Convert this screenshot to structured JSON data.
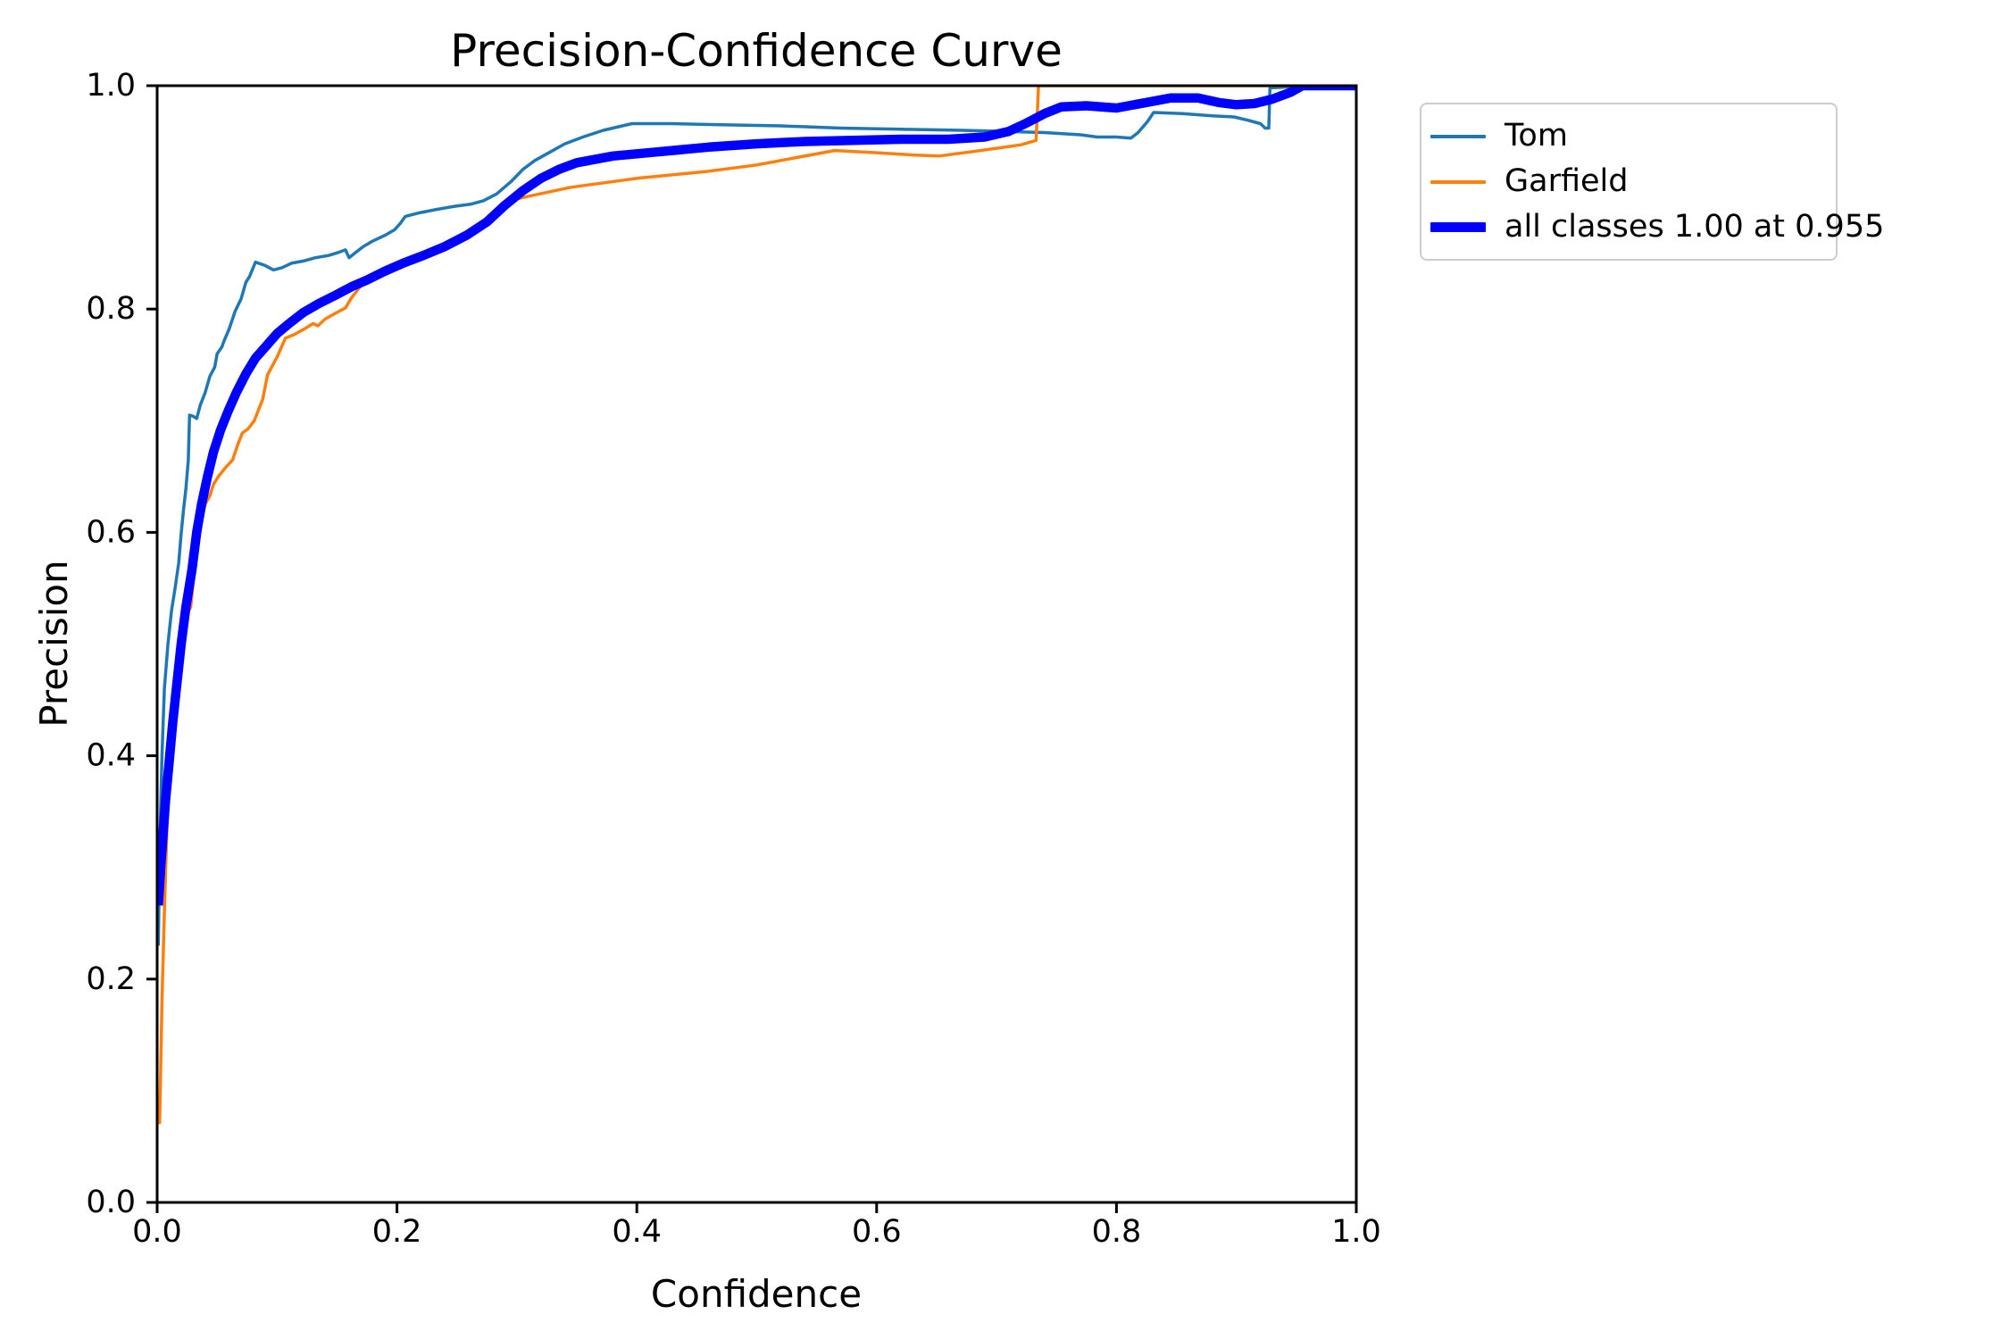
{
  "chart_data": {
    "type": "line",
    "title": "Precision-Confidence Curve",
    "xlabel": "Confidence",
    "ylabel": "Precision",
    "xlim": [
      0.0,
      1.0
    ],
    "ylim": [
      0.0,
      1.0
    ],
    "grid": false,
    "legend_position": "outside-upper-right",
    "x_ticks": [
      0.0,
      0.2,
      0.4,
      0.6,
      0.8,
      1.0
    ],
    "y_ticks": [
      0.0,
      0.2,
      0.4,
      0.6,
      0.8,
      1.0
    ],
    "x_tick_labels": [
      "0.0",
      "0.2",
      "0.4",
      "0.6",
      "0.8",
      "1.0"
    ],
    "y_tick_labels": [
      "0.0",
      "0.2",
      "0.4",
      "0.6",
      "0.8",
      "1.0"
    ],
    "axis_color": "#000000",
    "background_color": "#ffffff",
    "series": [
      {
        "name": "Tom",
        "color": "#1f77b4",
        "line_width": 3.5,
        "points": [
          [
            0.001,
            0.23
          ],
          [
            0.002,
            0.31
          ],
          [
            0.004,
            0.4
          ],
          [
            0.006,
            0.46
          ],
          [
            0.009,
            0.5
          ],
          [
            0.012,
            0.53
          ],
          [
            0.015,
            0.55
          ],
          [
            0.018,
            0.573
          ],
          [
            0.02,
            0.599
          ],
          [
            0.022,
            0.62
          ],
          [
            0.024,
            0.639
          ],
          [
            0.026,
            0.665
          ],
          [
            0.027,
            0.705
          ],
          [
            0.03,
            0.704
          ],
          [
            0.033,
            0.702
          ],
          [
            0.036,
            0.714
          ],
          [
            0.04,
            0.725
          ],
          [
            0.044,
            0.74
          ],
          [
            0.048,
            0.748
          ],
          [
            0.05,
            0.76
          ],
          [
            0.054,
            0.766
          ],
          [
            0.056,
            0.772
          ],
          [
            0.06,
            0.782
          ],
          [
            0.065,
            0.798
          ],
          [
            0.07,
            0.809
          ],
          [
            0.074,
            0.824
          ],
          [
            0.077,
            0.829
          ],
          [
            0.082,
            0.842
          ],
          [
            0.09,
            0.839
          ],
          [
            0.097,
            0.835
          ],
          [
            0.104,
            0.837
          ],
          [
            0.112,
            0.841
          ],
          [
            0.122,
            0.843
          ],
          [
            0.132,
            0.846
          ],
          [
            0.143,
            0.848
          ],
          [
            0.152,
            0.851
          ],
          [
            0.157,
            0.853
          ],
          [
            0.16,
            0.846
          ],
          [
            0.166,
            0.851
          ],
          [
            0.172,
            0.856
          ],
          [
            0.18,
            0.861
          ],
          [
            0.19,
            0.866
          ],
          [
            0.198,
            0.871
          ],
          [
            0.203,
            0.877
          ],
          [
            0.207,
            0.883
          ],
          [
            0.218,
            0.886
          ],
          [
            0.232,
            0.889
          ],
          [
            0.248,
            0.892
          ],
          [
            0.262,
            0.894
          ],
          [
            0.272,
            0.897
          ],
          [
            0.283,
            0.903
          ],
          [
            0.295,
            0.914
          ],
          [
            0.305,
            0.925
          ],
          [
            0.315,
            0.933
          ],
          [
            0.325,
            0.939
          ],
          [
            0.34,
            0.948
          ],
          [
            0.355,
            0.954
          ],
          [
            0.372,
            0.96
          ],
          [
            0.396,
            0.966
          ],
          [
            0.43,
            0.966
          ],
          [
            0.47,
            0.965
          ],
          [
            0.52,
            0.964
          ],
          [
            0.57,
            0.962
          ],
          [
            0.62,
            0.961
          ],
          [
            0.672,
            0.96
          ],
          [
            0.71,
            0.959
          ],
          [
            0.74,
            0.958
          ],
          [
            0.77,
            0.956
          ],
          [
            0.784,
            0.954
          ],
          [
            0.8,
            0.954
          ],
          [
            0.812,
            0.953
          ],
          [
            0.818,
            0.958
          ],
          [
            0.826,
            0.968
          ],
          [
            0.831,
            0.976
          ],
          [
            0.855,
            0.975
          ],
          [
            0.88,
            0.973
          ],
          [
            0.898,
            0.972
          ],
          [
            0.91,
            0.969
          ],
          [
            0.92,
            0.966
          ],
          [
            0.924,
            0.962
          ],
          [
            0.927,
            0.962
          ],
          [
            0.928,
            0.998
          ],
          [
            0.945,
            0.999
          ],
          [
            0.955,
            1.0
          ],
          [
            1.0,
            1.0
          ]
        ]
      },
      {
        "name": "Garfield",
        "color": "#ff7f0e",
        "line_width": 3.5,
        "points": [
          [
            0.002,
            0.07
          ],
          [
            0.003,
            0.12
          ],
          [
            0.004,
            0.18
          ],
          [
            0.006,
            0.26
          ],
          [
            0.008,
            0.33
          ],
          [
            0.01,
            0.39
          ],
          [
            0.013,
            0.44
          ],
          [
            0.016,
            0.48
          ],
          [
            0.02,
            0.51
          ],
          [
            0.024,
            0.525
          ],
          [
            0.028,
            0.533
          ],
          [
            0.03,
            0.555
          ],
          [
            0.031,
            0.573
          ],
          [
            0.034,
            0.598
          ],
          [
            0.037,
            0.612
          ],
          [
            0.04,
            0.625
          ],
          [
            0.044,
            0.633
          ],
          [
            0.047,
            0.643
          ],
          [
            0.051,
            0.65
          ],
          [
            0.057,
            0.658
          ],
          [
            0.063,
            0.665
          ],
          [
            0.067,
            0.678
          ],
          [
            0.071,
            0.689
          ],
          [
            0.076,
            0.693
          ],
          [
            0.081,
            0.7
          ],
          [
            0.085,
            0.711
          ],
          [
            0.088,
            0.719
          ],
          [
            0.09,
            0.73
          ],
          [
            0.092,
            0.741
          ],
          [
            0.1,
            0.757
          ],
          [
            0.107,
            0.774
          ],
          [
            0.114,
            0.777
          ],
          [
            0.124,
            0.783
          ],
          [
            0.13,
            0.787
          ],
          [
            0.134,
            0.785
          ],
          [
            0.14,
            0.791
          ],
          [
            0.15,
            0.797
          ],
          [
            0.157,
            0.801
          ],
          [
            0.162,
            0.81
          ],
          [
            0.17,
            0.821
          ],
          [
            0.179,
            0.828
          ],
          [
            0.192,
            0.837
          ],
          [
            0.21,
            0.846
          ],
          [
            0.228,
            0.853
          ],
          [
            0.25,
            0.863
          ],
          [
            0.27,
            0.874
          ],
          [
            0.293,
            0.897
          ],
          [
            0.31,
            0.901
          ],
          [
            0.345,
            0.909
          ],
          [
            0.4,
            0.917
          ],
          [
            0.457,
            0.923
          ],
          [
            0.5,
            0.929
          ],
          [
            0.53,
            0.935
          ],
          [
            0.565,
            0.942
          ],
          [
            0.6,
            0.94
          ],
          [
            0.63,
            0.938
          ],
          [
            0.652,
            0.937
          ],
          [
            0.68,
            0.941
          ],
          [
            0.7,
            0.944
          ],
          [
            0.72,
            0.947
          ],
          [
            0.733,
            0.951
          ],
          [
            0.735,
            1.0
          ],
          [
            1.0,
            1.0
          ]
        ]
      },
      {
        "name": "all classes",
        "color": "#0000ff",
        "line_width": 10.5,
        "points": [
          [
            0.001,
            0.266
          ],
          [
            0.003,
            0.3
          ],
          [
            0.005,
            0.33
          ],
          [
            0.007,
            0.36
          ],
          [
            0.01,
            0.394
          ],
          [
            0.013,
            0.43
          ],
          [
            0.016,
            0.46
          ],
          [
            0.02,
            0.5
          ],
          [
            0.024,
            0.533
          ],
          [
            0.029,
            0.566
          ],
          [
            0.033,
            0.6
          ],
          [
            0.037,
            0.625
          ],
          [
            0.042,
            0.65
          ],
          [
            0.047,
            0.672
          ],
          [
            0.053,
            0.692
          ],
          [
            0.059,
            0.708
          ],
          [
            0.066,
            0.725
          ],
          [
            0.074,
            0.742
          ],
          [
            0.082,
            0.756
          ],
          [
            0.091,
            0.767
          ],
          [
            0.1,
            0.778
          ],
          [
            0.11,
            0.787
          ],
          [
            0.122,
            0.797
          ],
          [
            0.135,
            0.805
          ],
          [
            0.148,
            0.812
          ],
          [
            0.162,
            0.82
          ],
          [
            0.175,
            0.826
          ],
          [
            0.19,
            0.834
          ],
          [
            0.205,
            0.841
          ],
          [
            0.222,
            0.848
          ],
          [
            0.24,
            0.856
          ],
          [
            0.258,
            0.866
          ],
          [
            0.275,
            0.878
          ],
          [
            0.29,
            0.893
          ],
          [
            0.305,
            0.906
          ],
          [
            0.32,
            0.917
          ],
          [
            0.335,
            0.925
          ],
          [
            0.35,
            0.931
          ],
          [
            0.38,
            0.937
          ],
          [
            0.42,
            0.941
          ],
          [
            0.46,
            0.945
          ],
          [
            0.5,
            0.948
          ],
          [
            0.54,
            0.95
          ],
          [
            0.58,
            0.951
          ],
          [
            0.62,
            0.952
          ],
          [
            0.66,
            0.952
          ],
          [
            0.69,
            0.954
          ],
          [
            0.71,
            0.959
          ],
          [
            0.724,
            0.966
          ],
          [
            0.74,
            0.975
          ],
          [
            0.754,
            0.981
          ],
          [
            0.775,
            0.982
          ],
          [
            0.8,
            0.98
          ],
          [
            0.825,
            0.985
          ],
          [
            0.845,
            0.989
          ],
          [
            0.868,
            0.989
          ],
          [
            0.885,
            0.985
          ],
          [
            0.9,
            0.983
          ],
          [
            0.915,
            0.984
          ],
          [
            0.93,
            0.988
          ],
          [
            0.945,
            0.994
          ],
          [
            0.955,
            1.0
          ],
          [
            1.0,
            1.0
          ]
        ]
      }
    ],
    "legend": [
      {
        "label": "Tom",
        "color": "#1f77b4",
        "sample_height": 4
      },
      {
        "label": "Garfield",
        "color": "#ff7f0e",
        "sample_height": 4
      },
      {
        "label": "all classes 1.00 at 0.955",
        "color": "#0000ff",
        "sample_height": 11
      }
    ]
  }
}
